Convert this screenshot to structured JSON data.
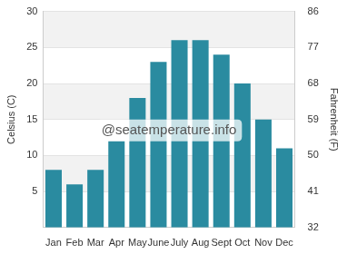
{
  "chart_data": {
    "type": "bar",
    "categories": [
      "Jan",
      "Feb",
      "Mar",
      "Apr",
      "May",
      "June",
      "July",
      "Aug",
      "Sept",
      "Oct",
      "Nov",
      "Dec"
    ],
    "values": [
      8,
      6,
      8,
      12,
      18,
      23,
      26,
      26,
      24,
      20,
      15,
      11
    ],
    "color": "#2a8ba0",
    "y_label": "Celsius (C)",
    "y2_label": "Fahrenheit (F)",
    "ylim": [
      0,
      30
    ],
    "yticks": [
      5,
      10,
      15,
      20,
      25,
      30
    ],
    "y2lim": [
      32,
      86
    ],
    "y2ticks": [
      32,
      41,
      50,
      59,
      68,
      77,
      86
    ],
    "annotation": "@seatemperature.info",
    "grid": true
  }
}
